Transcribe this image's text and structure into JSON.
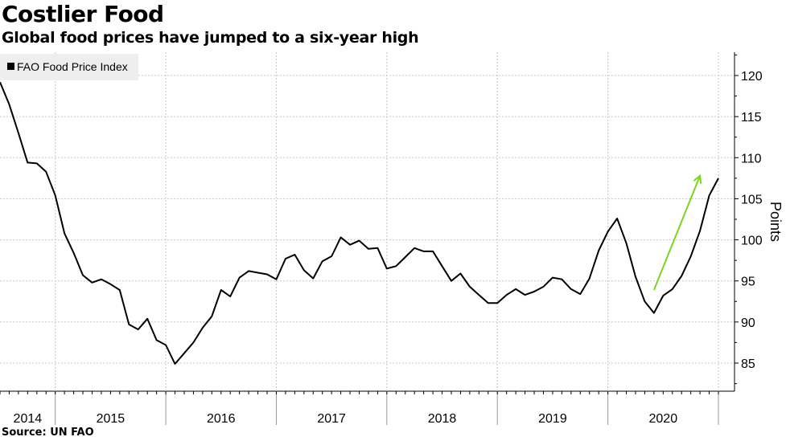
{
  "header": {
    "title": "Costlier Food",
    "subtitle": "Global food prices have jumped to a six-year high"
  },
  "footer": {
    "source": "Source: UN FAO"
  },
  "colors": {
    "line": "#000000",
    "arrow": "#7ed321",
    "legend_bg": "#eeeeee",
    "grid": "#c8c8c8"
  },
  "chart_data": {
    "type": "line",
    "title": "Costlier Food",
    "subtitle": "Global food prices have jumped to a six-year high",
    "ylabel": "Points",
    "xlabel": "",
    "ylim": [
      83,
      122
    ],
    "yticks": [
      85,
      90,
      95,
      100,
      105,
      110,
      115,
      120
    ],
    "ytick_labels": [
      "85",
      "90",
      "95",
      "100",
      "105",
      "110",
      "115",
      "120"
    ],
    "x_unit": "monthly observations; year bands begin at index 6 and span 12 points each",
    "year_labels": [
      "2014",
      "2015",
      "2016",
      "2017",
      "2018",
      "2019",
      "2020"
    ],
    "grid": true,
    "legend": {
      "position": "top-left",
      "entries": [
        "FAO Food Price Index"
      ]
    },
    "annotation": {
      "type": "arrow",
      "color": "#7ed321",
      "from": {
        "index": 71,
        "value": 93.9
      },
      "to": {
        "index": 76,
        "value": 107.8
      }
    },
    "series": [
      {
        "name": "FAO Food Price Index",
        "values": [
          119.2,
          116.5,
          113.0,
          109.4,
          109.3,
          108.3,
          105.4,
          100.8,
          98.4,
          95.7,
          94.8,
          95.2,
          94.6,
          93.9,
          89.7,
          89.1,
          90.4,
          87.8,
          87.2,
          84.9,
          86.2,
          87.5,
          89.3,
          90.7,
          93.9,
          93.1,
          95.4,
          96.2,
          96.0,
          95.8,
          95.2,
          97.7,
          98.2,
          96.3,
          95.3,
          97.4,
          98.0,
          100.3,
          99.4,
          99.9,
          98.9,
          99.0,
          96.5,
          96.8,
          97.9,
          99.0,
          98.6,
          98.6,
          96.8,
          95.0,
          95.9,
          94.3,
          93.3,
          92.3,
          92.3,
          93.3,
          94.0,
          93.3,
          93.7,
          94.3,
          95.4,
          95.2,
          94.0,
          93.4,
          95.3,
          98.7,
          101.0,
          102.6,
          99.6,
          95.5,
          92.5,
          91.1,
          93.2,
          94.0,
          95.6,
          98.0,
          101.1,
          105.4,
          107.5
        ]
      }
    ]
  }
}
